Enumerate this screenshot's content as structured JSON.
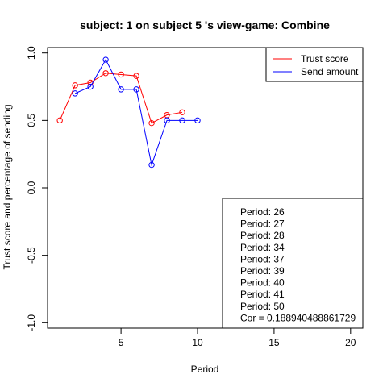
{
  "chart_data": {
    "type": "line",
    "title": "subject:  1  on subject  5 's view-game:  Combine",
    "xlabel": "Period",
    "ylabel": "Trust score and percentage of sending",
    "xlim": [
      0.2,
      20.8
    ],
    "ylim": [
      -1.04,
      1.04
    ],
    "xticks": [
      5,
      10,
      15,
      20
    ],
    "yticks": [
      -1.0,
      -0.5,
      0.0,
      0.5,
      1.0
    ],
    "xtick_labels": [
      "5",
      "10",
      "15",
      "20"
    ],
    "ytick_labels": [
      "-1.0",
      "-0.5",
      "0.0",
      "0.5",
      "1.0"
    ],
    "grid": false,
    "legend_position": "top-right",
    "series": [
      {
        "name": "Trust score",
        "color": "#ff0000",
        "x": [
          1,
          2,
          3,
          4,
          5,
          6,
          7,
          8,
          9
        ],
        "y": [
          0.5,
          0.76,
          0.78,
          0.85,
          0.84,
          0.83,
          0.48,
          0.54,
          0.56
        ]
      },
      {
        "name": "Send amount",
        "color": "#0000ff",
        "x": [
          2,
          3,
          4,
          5,
          6,
          7,
          8,
          9,
          10
        ],
        "y": [
          0.7,
          0.75,
          0.95,
          0.73,
          0.73,
          0.17,
          0.5,
          0.5,
          0.5
        ]
      }
    ],
    "info_box": {
      "position": "bottom-right",
      "lines": [
        "Period:  26",
        "Period:  27",
        "Period:  28",
        "Period:  34",
        "Period:  37",
        "Period:  39",
        "Period:  40",
        "Period:  41",
        "Period:  50",
        "Cor =  0.188940488861729"
      ]
    }
  }
}
